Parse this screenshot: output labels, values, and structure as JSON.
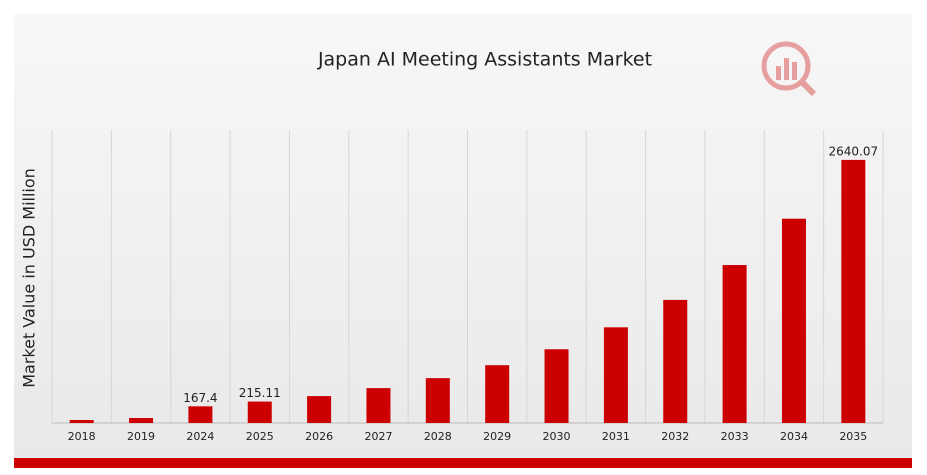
{
  "chart_data": {
    "type": "bar",
    "title": "Japan AI Meeting Assistants Market",
    "y_label": "Market Value in USD Million",
    "categories": [
      "2018",
      "2019",
      "2024",
      "2025",
      "2026",
      "2027",
      "2028",
      "2029",
      "2030",
      "2031",
      "2032",
      "2033",
      "2034",
      "2035"
    ],
    "values": [
      30,
      50,
      167.4,
      215.11,
      270,
      350,
      450,
      580,
      740,
      960,
      1235,
      1585,
      2050,
      2640.07
    ],
    "value_labels": [
      null,
      null,
      "167.4",
      "215.11",
      null,
      null,
      null,
      null,
      null,
      null,
      null,
      null,
      null,
      "2640.07"
    ],
    "color": "#cc0000",
    "ylim": [
      0,
      2940
    ],
    "grid": true
  }
}
